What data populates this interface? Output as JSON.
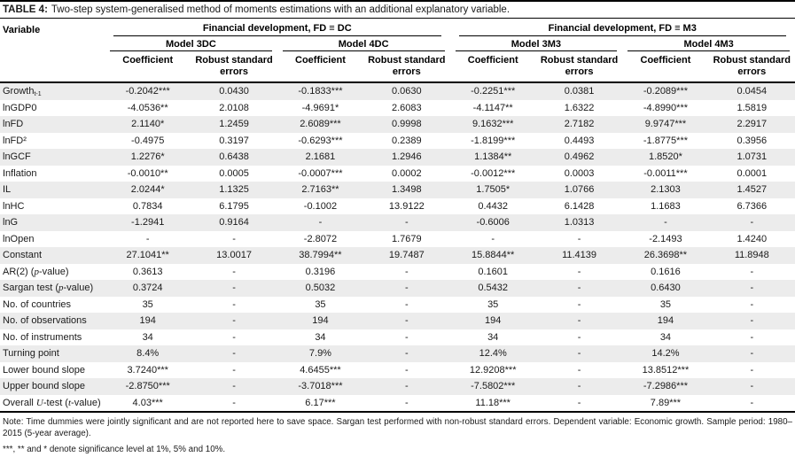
{
  "caption": {
    "label": "TABLE 4:",
    "text": "Two-step system-generalised method of moments estimations with an additional explanatory variable."
  },
  "table": {
    "variable_header": "Variable",
    "groups": [
      {
        "label": "Financial development, FD ≡ DC",
        "models": [
          {
            "label": "Model 3DC"
          },
          {
            "label": "Model 4DC"
          }
        ]
      },
      {
        "label": "Financial development, FD ≡ M3",
        "models": [
          {
            "label": "Model 3M3"
          },
          {
            "label": "Model 4M3"
          }
        ]
      }
    ],
    "sub_headers": {
      "coefficient": "Coefficient",
      "robust_se": "Robust standard errors"
    },
    "rows": [
      {
        "label": "Growth~t-1~",
        "values": [
          "-0.2042***",
          "0.0430",
          "-0.1833***",
          "0.0630",
          "-0.2251***",
          "0.0381",
          "-0.2089***",
          "0.0454"
        ]
      },
      {
        "label": "lnGDP0",
        "values": [
          "-4.0536**",
          "2.0108",
          "-4.9691*",
          "2.6083",
          "-4.1147**",
          "1.6322",
          "-4.8990***",
          "1.5819"
        ]
      },
      {
        "label": "lnFD",
        "values": [
          "2.1140*",
          "1.2459",
          "2.6089***",
          "0.9998",
          "9.1632***",
          "2.7182",
          "9.9747***",
          "2.2917"
        ]
      },
      {
        "label": "lnFD²",
        "values": [
          "-0.4975",
          "0.3197",
          "-0.6293***",
          "0.2389",
          "-1.8199***",
          "0.4493",
          "-1.8775***",
          "0.3956"
        ]
      },
      {
        "label": "lnGCF",
        "values": [
          "1.2276*",
          "0.6438",
          "2.1681",
          "1.2946",
          "1.1384**",
          "0.4962",
          "1.8520*",
          "1.0731"
        ]
      },
      {
        "label": "Inflation",
        "values": [
          "-0.0010**",
          "0.0005",
          "-0.0007***",
          "0.0002",
          "-0.0012***",
          "0.0003",
          "-0.0011***",
          "0.0001"
        ]
      },
      {
        "label": "IL",
        "values": [
          "2.0244*",
          "1.1325",
          "2.7163**",
          "1.3498",
          "1.7505*",
          "1.0766",
          "2.1303",
          "1.4527"
        ]
      },
      {
        "label": "lnHC",
        "values": [
          "0.7834",
          "6.1795",
          "-0.1002",
          "13.9122",
          "0.4432",
          "6.1428",
          "1.1683",
          "6.7366"
        ]
      },
      {
        "label": "lnG",
        "values": [
          "-1.2941",
          "0.9164",
          "-",
          "-",
          "-0.6006",
          "1.0313",
          "-",
          "-"
        ]
      },
      {
        "label": "lnOpen",
        "values": [
          "-",
          "-",
          "-2.8072",
          "1.7679",
          "-",
          "-",
          "-2.1493",
          "1.4240"
        ]
      },
      {
        "label": "Constant",
        "values": [
          "27.1041**",
          "13.0017",
          "38.7994**",
          "19.7487",
          "15.8844**",
          "11.4139",
          "26.3698**",
          "11.8948"
        ]
      },
      {
        "label": "AR(2) (*p*-value)",
        "values": [
          "0.3613",
          "-",
          "0.3196",
          "-",
          "0.1601",
          "-",
          "0.1616",
          "-"
        ]
      },
      {
        "label": "Sargan test (*p*-value)",
        "values": [
          "0.3724",
          "-",
          "0.5032",
          "-",
          "0.5432",
          "-",
          "0.6430",
          "-"
        ]
      },
      {
        "label": "No. of countries",
        "values": [
          "35",
          "-",
          "35",
          "-",
          "35",
          "-",
          "35",
          "-"
        ]
      },
      {
        "label": "No. of observations",
        "values": [
          "194",
          "-",
          "194",
          "-",
          "194",
          "-",
          "194",
          "-"
        ]
      },
      {
        "label": "No. of instruments",
        "values": [
          "34",
          "-",
          "34",
          "-",
          "34",
          "-",
          "34",
          "-"
        ]
      },
      {
        "label": "Turning point",
        "values": [
          "8.4%",
          "-",
          "7.9%",
          "-",
          "12.4%",
          "-",
          "14.2%",
          "-"
        ]
      },
      {
        "label": "Lower bound slope",
        "values": [
          "3.7240***",
          "-",
          "4.6455***",
          "-",
          "12.9208***",
          "-",
          "13.8512***",
          "-"
        ]
      },
      {
        "label": "Upper bound slope",
        "values": [
          "-2.8750***",
          "-",
          "-3.7018***",
          "-",
          "-7.5802***",
          "-",
          "-7.2986***",
          "-"
        ]
      },
      {
        "label": "Overall *U*-test (*t*-value)",
        "values": [
          "4.03***",
          "-",
          "6.17***",
          "-",
          "11.18***",
          "-",
          "7.89***",
          "-"
        ]
      }
    ]
  },
  "footnotes": {
    "note": "Note: Time dummies were jointly significant and are not reported here to save space. Sargan test performed with non-robust standard errors. Dependent variable: Economic growth. Sample period: 1980–2015 (5-year average).",
    "significance": "***, ** and * denote significance level at 1%, 5% and 10%."
  }
}
